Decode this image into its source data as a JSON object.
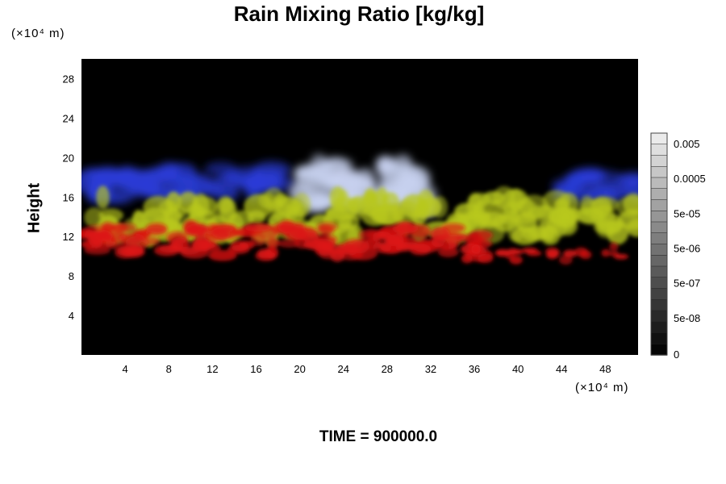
{
  "chart_data": {
    "type": "heatmap",
    "title": "Rain Mixing Ratio [kg/kg]",
    "ylabel": "Height",
    "xlabel": "",
    "y_unit": "(×10⁴ m)",
    "x_unit": "(×10⁴ m)",
    "x_ticks": [
      4,
      8,
      12,
      16,
      20,
      24,
      28,
      32,
      36,
      40,
      44,
      48
    ],
    "y_ticks": [
      4,
      8,
      12,
      16,
      20,
      24,
      28
    ],
    "xlim": [
      0,
      51
    ],
    "ylim": [
      0,
      30
    ],
    "grid": false,
    "background_color": "#000000",
    "colorbar": {
      "labels": [
        "0.005",
        "0.0005",
        "5e-05",
        "5e-06",
        "5e-07",
        "5e-08",
        "0"
      ],
      "levels": 20,
      "placement": "right"
    },
    "features": [
      {
        "name": "upper-blue-layer",
        "color": "#2a3cd8",
        "x_range": [
          0,
          18
        ],
        "y_range": [
          16,
          19
        ]
      },
      {
        "name": "white-core",
        "color": "#c8d2f0",
        "x_range": [
          20,
          32
        ],
        "y_range": [
          15,
          19.5
        ]
      },
      {
        "name": "right-blue-layer",
        "color": "#2a3cd8",
        "x_range": [
          44,
          51
        ],
        "y_range": [
          16,
          18.5
        ]
      },
      {
        "name": "yellow-green-layer",
        "color": "#b8c81e",
        "x_range": [
          1,
          51
        ],
        "y_range": [
          12,
          16
        ]
      },
      {
        "name": "red-lower-layer",
        "color": "#dc1414",
        "x_range": [
          0,
          37
        ],
        "y_range": [
          10,
          13
        ]
      },
      {
        "name": "red-patches",
        "color": "#dc1414",
        "x_range": [
          35,
          51
        ],
        "y_range": [
          9.5,
          11
        ]
      }
    ]
  },
  "footer": {
    "time_label": "TIME = 900000.0"
  }
}
